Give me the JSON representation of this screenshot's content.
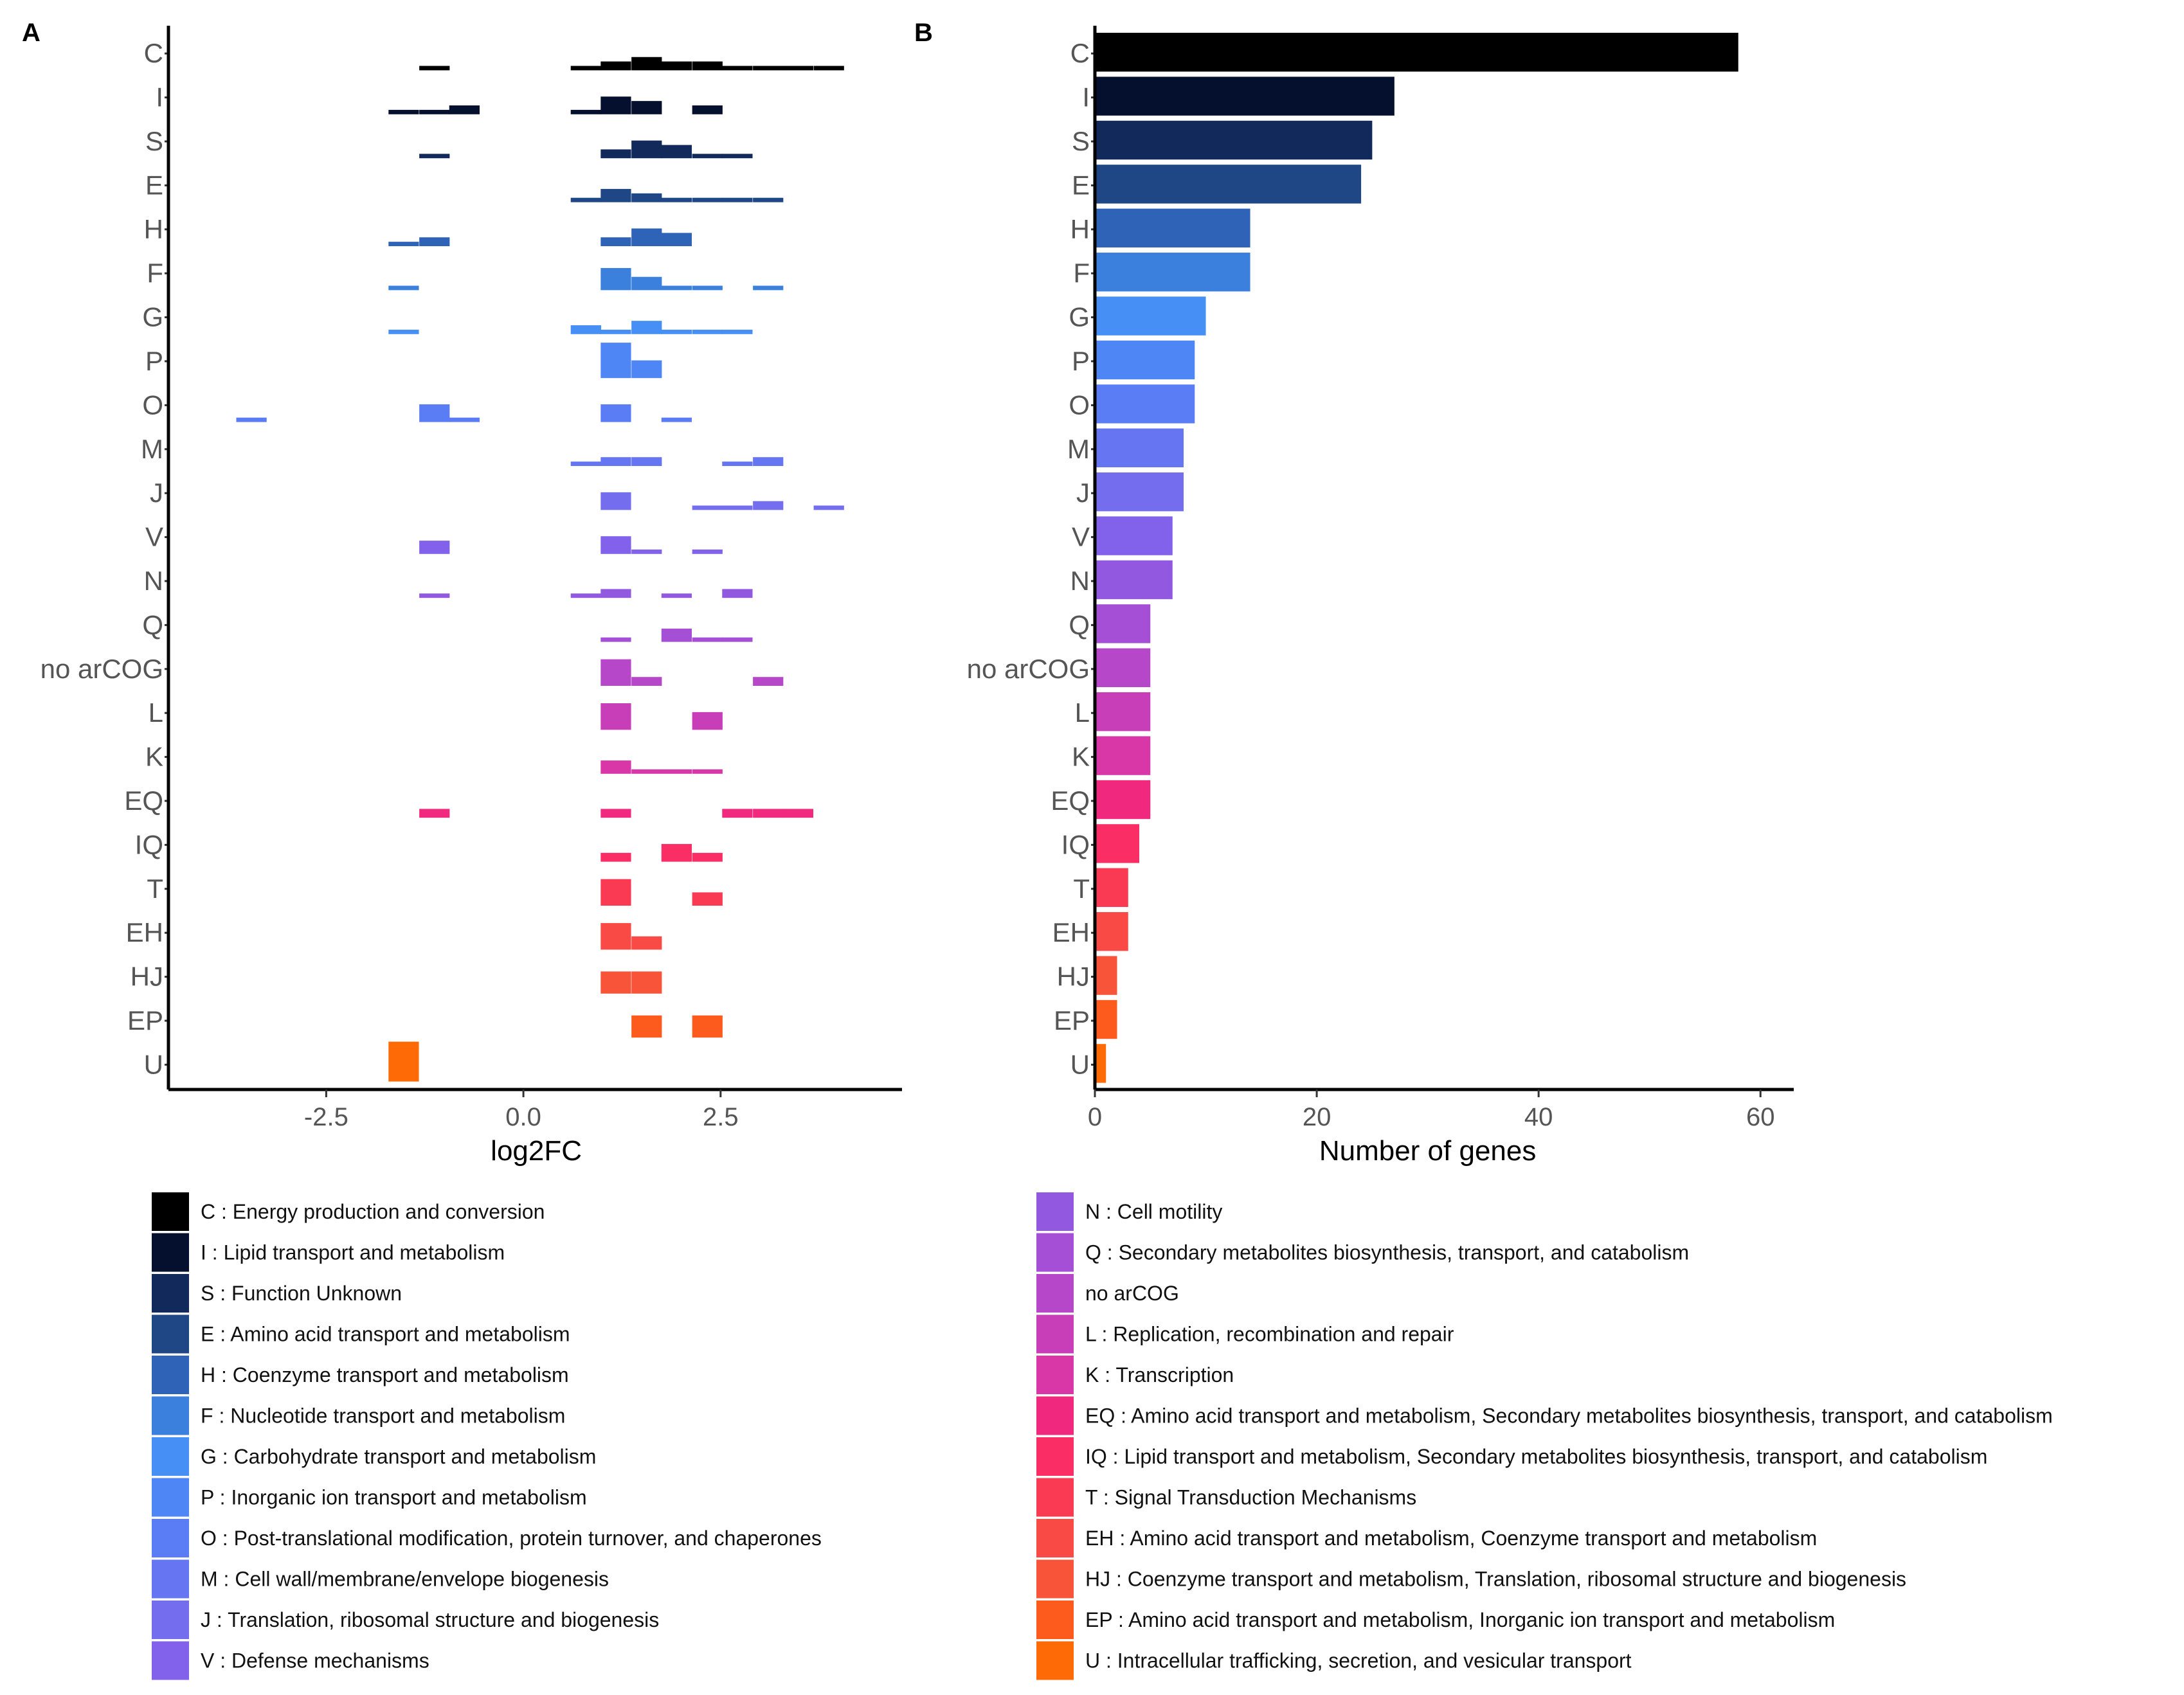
{
  "panels": {
    "a": "A",
    "b": "B"
  },
  "categories": [
    "C",
    "I",
    "S",
    "E",
    "H",
    "F",
    "G",
    "P",
    "O",
    "M",
    "J",
    "V",
    "N",
    "Q",
    "no arCOG",
    "L",
    "K",
    "EQ",
    "IQ",
    "T",
    "EH",
    "HJ",
    "EP",
    "U"
  ],
  "colors": {
    "C": "#000000",
    "I": "#050F2E",
    "S": "#11295B",
    "E": "#1F4685",
    "H": "#2F63B8",
    "F": "#3C80DE",
    "G": "#458FF5",
    "P": "#4F86F5",
    "O": "#5A7DF5",
    "M": "#6675F2",
    "J": "#746DEE",
    "V": "#8262EA",
    "N": "#9358E0",
    "Q": "#A44FD6",
    "no arCOG": "#B547C8",
    "L": "#C73EB8",
    "K": "#D936A8",
    "EQ": "#F0287E",
    "IQ": "#FA2E64",
    "T": "#FA3953",
    "EH": "#F94A45",
    "HJ": "#F8543A",
    "EP": "#FD5B1E",
    "U": "#FE6A06"
  },
  "chart_data": [
    {
      "type": "histogram",
      "title": "",
      "xlabel": "log2FC",
      "ylabel": "",
      "xlim": [
        -4.5,
        4.8
      ],
      "xticks": [
        -2.5,
        0.0,
        2.5
      ],
      "xtick_labels": [
        "-2.5",
        "0.0",
        "2.5"
      ],
      "bin_width": 0.385,
      "max_count_per_row": 3,
      "rows": [
        {
          "category": "C",
          "bins": [
            [
              -1.32,
              1
            ],
            [
              0.6,
              1
            ],
            [
              0.98,
              2
            ],
            [
              1.37,
              3
            ],
            [
              1.75,
              2
            ],
            [
              2.14,
              2
            ],
            [
              2.52,
              1
            ],
            [
              2.91,
              1
            ],
            [
              3.29,
              1
            ],
            [
              3.68,
              1
            ]
          ]
        },
        {
          "category": "I",
          "bins": [
            [
              -1.71,
              1
            ],
            [
              -1.32,
              1
            ],
            [
              -0.94,
              2
            ],
            [
              0.6,
              1
            ],
            [
              0.98,
              4
            ],
            [
              1.37,
              3
            ],
            [
              2.14,
              2
            ]
          ]
        },
        {
          "category": "S",
          "bins": [
            [
              -1.32,
              1
            ],
            [
              0.98,
              2
            ],
            [
              1.37,
              4
            ],
            [
              1.75,
              3
            ],
            [
              2.14,
              1
            ],
            [
              2.52,
              1
            ]
          ]
        },
        {
          "category": "E",
          "bins": [
            [
              0.6,
              1
            ],
            [
              0.98,
              3
            ],
            [
              1.37,
              2
            ],
            [
              1.75,
              1
            ],
            [
              2.14,
              1
            ],
            [
              2.52,
              1
            ],
            [
              2.91,
              1
            ]
          ]
        },
        {
          "category": "H",
          "bins": [
            [
              -1.71,
              1
            ],
            [
              -1.32,
              2
            ],
            [
              0.98,
              2
            ],
            [
              1.37,
              4
            ],
            [
              1.75,
              3
            ]
          ]
        },
        {
          "category": "F",
          "bins": [
            [
              -1.71,
              1
            ],
            [
              0.98,
              5
            ],
            [
              1.37,
              3
            ],
            [
              1.75,
              1
            ],
            [
              2.14,
              1
            ],
            [
              2.91,
              1
            ]
          ]
        },
        {
          "category": "G",
          "bins": [
            [
              -1.71,
              1
            ],
            [
              0.6,
              2
            ],
            [
              0.98,
              1
            ],
            [
              1.37,
              3
            ],
            [
              1.75,
              1
            ],
            [
              2.14,
              1
            ],
            [
              2.52,
              1
            ]
          ]
        },
        {
          "category": "P",
          "bins": [
            [
              0.98,
              8
            ],
            [
              1.37,
              4
            ]
          ]
        },
        {
          "category": "O",
          "bins": [
            [
              -3.64,
              1
            ],
            [
              -1.32,
              4
            ],
            [
              -0.94,
              1
            ],
            [
              0.98,
              4
            ],
            [
              1.75,
              1
            ]
          ]
        },
        {
          "category": "M",
          "bins": [
            [
              0.6,
              1
            ],
            [
              0.98,
              2
            ],
            [
              1.37,
              2
            ],
            [
              2.52,
              1
            ],
            [
              2.91,
              2
            ]
          ]
        },
        {
          "category": "J",
          "bins": [
            [
              0.98,
              4
            ],
            [
              2.14,
              1
            ],
            [
              2.52,
              1
            ],
            [
              2.91,
              2
            ],
            [
              3.68,
              1
            ]
          ]
        },
        {
          "category": "V",
          "bins": [
            [
              -1.32,
              3
            ],
            [
              0.98,
              4
            ],
            [
              1.37,
              1
            ],
            [
              2.14,
              1
            ]
          ]
        },
        {
          "category": "N",
          "bins": [
            [
              -1.32,
              1
            ],
            [
              0.6,
              1
            ],
            [
              0.98,
              2
            ],
            [
              1.75,
              1
            ],
            [
              2.52,
              2
            ]
          ]
        },
        {
          "category": "Q",
          "bins": [
            [
              0.98,
              1
            ],
            [
              1.75,
              3
            ],
            [
              2.14,
              1
            ],
            [
              2.52,
              1
            ]
          ]
        },
        {
          "category": "no arCOG",
          "bins": [
            [
              0.98,
              6
            ],
            [
              1.37,
              2
            ],
            [
              2.91,
              2
            ]
          ]
        },
        {
          "category": "L",
          "bins": [
            [
              0.98,
              6
            ],
            [
              2.14,
              4
            ]
          ]
        },
        {
          "category": "K",
          "bins": [
            [
              0.98,
              3
            ],
            [
              1.37,
              1
            ],
            [
              1.75,
              1
            ],
            [
              2.14,
              1
            ]
          ]
        },
        {
          "category": "EQ",
          "bins": [
            [
              -1.32,
              2
            ],
            [
              0.98,
              2
            ],
            [
              2.52,
              2
            ],
            [
              2.91,
              2
            ],
            [
              3.29,
              2
            ]
          ]
        },
        {
          "category": "IQ",
          "bins": [
            [
              0.98,
              2
            ],
            [
              1.75,
              4
            ],
            [
              2.14,
              2
            ]
          ]
        },
        {
          "category": "T",
          "bins": [
            [
              0.98,
              6
            ],
            [
              2.14,
              3
            ]
          ]
        },
        {
          "category": "EH",
          "bins": [
            [
              0.98,
              6
            ],
            [
              1.37,
              3
            ]
          ]
        },
        {
          "category": "HJ",
          "bins": [
            [
              0.98,
              5
            ],
            [
              1.37,
              5
            ]
          ]
        },
        {
          "category": "EP",
          "bins": [
            [
              1.37,
              5
            ],
            [
              2.14,
              5
            ]
          ]
        },
        {
          "category": "U",
          "bins": [
            [
              -1.71,
              9
            ]
          ]
        }
      ]
    },
    {
      "type": "bar",
      "orientation": "horizontal",
      "title": "",
      "xlabel": "Number of genes",
      "ylabel": "",
      "xlim": [
        0,
        63
      ],
      "xticks": [
        0,
        20,
        40,
        60
      ],
      "xtick_labels": [
        "0",
        "20",
        "40",
        "60"
      ],
      "categories": [
        "C",
        "I",
        "S",
        "E",
        "H",
        "F",
        "G",
        "P",
        "O",
        "M",
        "J",
        "V",
        "N",
        "Q",
        "no arCOG",
        "L",
        "K",
        "EQ",
        "IQ",
        "T",
        "EH",
        "HJ",
        "EP",
        "U"
      ],
      "values": [
        58,
        27,
        25,
        24,
        14,
        14,
        10,
        9,
        9,
        8,
        8,
        7,
        7,
        5,
        5,
        5,
        5,
        5,
        4,
        3,
        3,
        2,
        2,
        1
      ]
    }
  ],
  "legend": {
    "left": [
      {
        "key": "C",
        "label": "C : Energy production and conversion"
      },
      {
        "key": "I",
        "label": "I : Lipid transport and metabolism"
      },
      {
        "key": "S",
        "label": "S : Function Unknown"
      },
      {
        "key": "E",
        "label": "E : Amino acid transport and metabolism"
      },
      {
        "key": "H",
        "label": "H : Coenzyme transport and metabolism"
      },
      {
        "key": "F",
        "label": "F : Nucleotide transport and metabolism"
      },
      {
        "key": "G",
        "label": "G : Carbohydrate transport and metabolism"
      },
      {
        "key": "P",
        "label": "P : Inorganic ion transport and metabolism"
      },
      {
        "key": "O",
        "label": "O : Post-translational modification, protein turnover, and chaperones"
      },
      {
        "key": "M",
        "label": "M :  Cell wall/membrane/envelope biogenesis"
      },
      {
        "key": "J",
        "label": "J : Translation, ribosomal structure and biogenesis"
      },
      {
        "key": "V",
        "label": "V :  Defense mechanisms"
      }
    ],
    "right": [
      {
        "key": "N",
        "label": "N : Cell motility"
      },
      {
        "key": "Q",
        "label": "Q : Secondary metabolites biosynthesis, transport, and catabolism"
      },
      {
        "key": "no arCOG",
        "label": "no arCOG"
      },
      {
        "key": "L",
        "label": "L : Replication, recombination and repair"
      },
      {
        "key": "K",
        "label": "K : Transcription"
      },
      {
        "key": "EQ",
        "label": "EQ : Amino acid transport and metabolism, Secondary metabolites biosynthesis, transport, and catabolism"
      },
      {
        "key": "IQ",
        "label": "IQ : Lipid transport and metabolism, Secondary metabolites biosynthesis, transport, and catabolism"
      },
      {
        "key": "T",
        "label": "T : Signal Transduction Mechanisms"
      },
      {
        "key": "EH",
        "label": "EH : Amino acid transport and metabolism, Coenzyme transport and metabolism"
      },
      {
        "key": "HJ",
        "label": "HJ : Coenzyme transport and metabolism, Translation, ribosomal structure and biogenesis"
      },
      {
        "key": "EP",
        "label": "EP : Amino acid transport and metabolism, Inorganic ion transport and metabolism"
      },
      {
        "key": "U",
        "label": "U : Intracellular trafficking, secretion, and vesicular transport"
      }
    ]
  }
}
